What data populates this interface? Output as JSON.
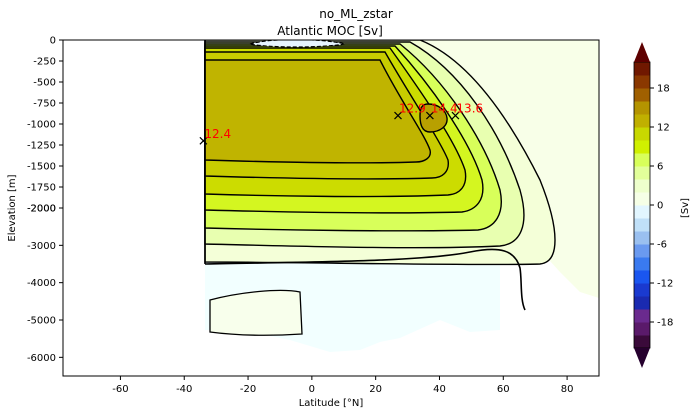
{
  "figure_title": "no_ML_zstar",
  "chart_data": {
    "type": "contour",
    "title": "Atlantic MOC [Sv]",
    "xlabel": "Latitude [°N]",
    "ylabel": "Elevation [m]",
    "xlim": [
      -78,
      90
    ],
    "x_ticks": [
      -60,
      -40,
      -20,
      0,
      20,
      40,
      60,
      80
    ],
    "y_ticks_upper": [
      0,
      -250,
      -500,
      -750,
      -1000,
      -1250,
      -1500,
      -1750,
      -2000
    ],
    "y_ticks_lower": [
      -2000,
      -3000,
      -4000,
      -5000,
      -6000
    ],
    "ylim": [
      -6500,
      0
    ],
    "grid": false,
    "colorbar": {
      "label": "[Sv]",
      "ticks": [
        18,
        12,
        6,
        0,
        -6,
        -12,
        -18
      ],
      "range": [
        -22,
        22
      ],
      "levels": [
        -22,
        -20,
        -18,
        -16,
        -14,
        -12,
        -10,
        -8,
        -6,
        -4,
        -2,
        0,
        2,
        4,
        6,
        8,
        10,
        12,
        14,
        16,
        18,
        20,
        22
      ],
      "colors_low_to_high": [
        "#3a0a3a",
        "#5a1a6a",
        "#6a2a8e",
        "#1a2ab0",
        "#1a3ad0",
        "#1a56f0",
        "#3a7af0",
        "#6a9af0",
        "#9ac0f0",
        "#c0e0f8",
        "#e2f6ff",
        "#f6ffe6",
        "#eeffcc",
        "#e2ff9a",
        "#d8ff5a",
        "#d0f000",
        "#c8d800",
        "#c0b000",
        "#b49400",
        "#a06000",
        "#8a3800",
        "#701800"
      ],
      "over_color": "#5e0000",
      "under_color": "#26002e"
    },
    "annotations": [
      {
        "label": "12.4",
        "lat": -34,
        "depth": -1200
      },
      {
        "label": "12.9",
        "lat": 27,
        "depth": -900
      },
      {
        "label": "14.4",
        "lat": 37,
        "depth": -900
      },
      {
        "label": "13.6",
        "lat": 45,
        "depth": -900
      }
    ]
  }
}
